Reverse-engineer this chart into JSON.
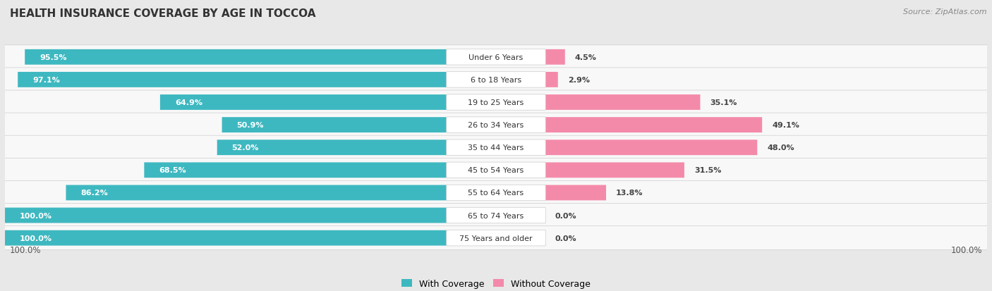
{
  "title": "HEALTH INSURANCE COVERAGE BY AGE IN TOCCOA",
  "source": "Source: ZipAtlas.com",
  "categories": [
    "Under 6 Years",
    "6 to 18 Years",
    "19 to 25 Years",
    "26 to 34 Years",
    "35 to 44 Years",
    "45 to 54 Years",
    "55 to 64 Years",
    "65 to 74 Years",
    "75 Years and older"
  ],
  "with_coverage": [
    95.5,
    97.1,
    64.9,
    50.9,
    52.0,
    68.5,
    86.2,
    100.0,
    100.0
  ],
  "without_coverage": [
    4.5,
    2.9,
    35.1,
    49.1,
    48.0,
    31.5,
    13.8,
    0.0,
    0.0
  ],
  "color_with": "#3eb8c0",
  "color_without": "#f48aaa",
  "color_with_light": "#7acfd4",
  "bg_color": "#e8e8e8",
  "row_bg": "#f5f5f5",
  "row_bg_alt": "#ececec",
  "title_fontsize": 11,
  "label_fontsize": 8,
  "bar_label_fontsize": 8,
  "legend_fontsize": 9,
  "footer_fontsize": 8.5
}
